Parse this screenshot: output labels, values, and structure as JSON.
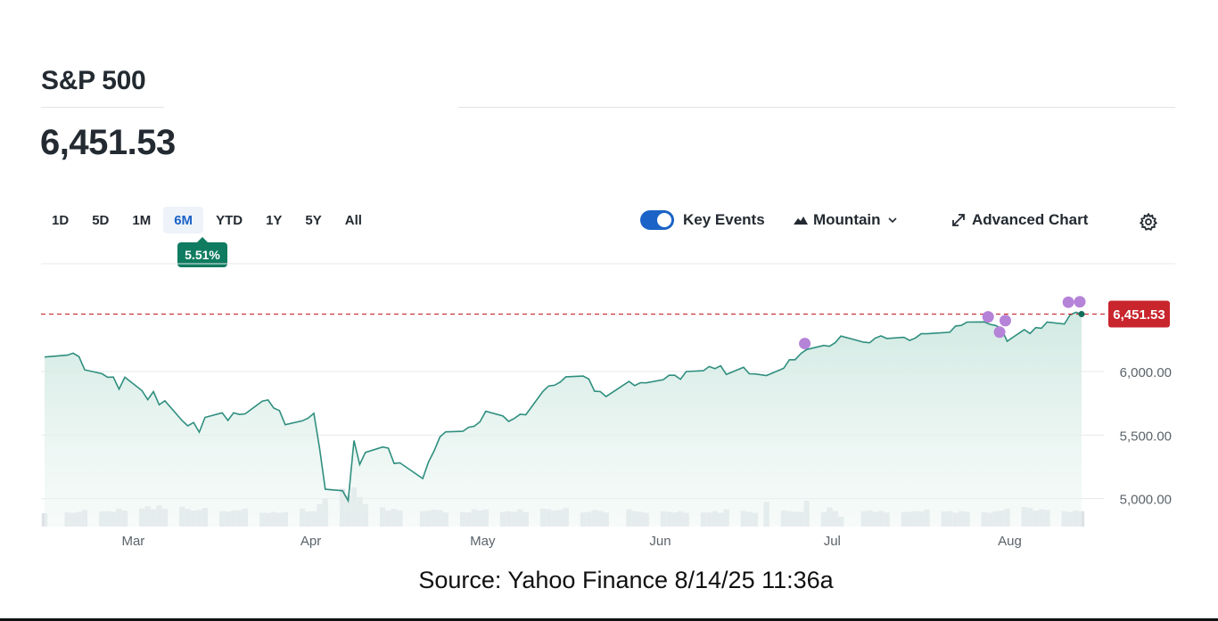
{
  "header": {
    "title": "S&P 500",
    "price": "6,451.53"
  },
  "ranges": [
    {
      "label": "1D",
      "active": false
    },
    {
      "label": "5D",
      "active": false
    },
    {
      "label": "1M",
      "active": false
    },
    {
      "label": "6M",
      "active": true
    },
    {
      "label": "YTD",
      "active": false
    },
    {
      "label": "1Y",
      "active": false
    },
    {
      "label": "5Y",
      "active": false
    },
    {
      "label": "All",
      "active": false
    }
  ],
  "change_badge": "5.51%",
  "controls": {
    "key_events_label": "Key Events",
    "key_events_on": true,
    "chart_type_label": "Mountain",
    "advanced_label": "Advanced Chart"
  },
  "icons": {
    "chart_type": "mountain-icon",
    "chart_type_menu": "chevron-down-icon",
    "advanced": "expand-arrow-icon",
    "settings": "gear-icon"
  },
  "colors": {
    "line": "#2f8f7f",
    "fill": "#d6ece6",
    "volume": "#dde2e6",
    "last_price": "#c9252d",
    "event_dot": "#b583d8",
    "active_range": "#1b63c6",
    "badge": "#0f7b60"
  },
  "source_note": "Source: Yahoo Finance 8/14/25 11:36a",
  "chart_data": {
    "type": "area",
    "series_name": "",
    "x_start": "2025-02-14",
    "x_end": "2025-08-14",
    "x_ticks": [
      {
        "label": "Mar",
        "date": "2025-03-01"
      },
      {
        "label": "Apr",
        "date": "2025-04-01"
      },
      {
        "label": "May",
        "date": "2025-05-01"
      },
      {
        "label": "Jun",
        "date": "2025-06-01"
      },
      {
        "label": "Jul",
        "date": "2025-07-01"
      },
      {
        "label": "Aug",
        "date": "2025-08-01"
      }
    ],
    "y_ticks": [
      {
        "label": "6,000.00",
        "value": 6000
      },
      {
        "label": "5,500.00",
        "value": 5500
      },
      {
        "label": "5,000.00",
        "value": 5000
      }
    ],
    "ylim": [
      4780,
      6960
    ],
    "last_price": {
      "label": "6,451.53",
      "value": 6451.53
    },
    "grid": "horizontal",
    "x": [
      "2025-02-14",
      "2025-02-18",
      "2025-02-19",
      "2025-02-20",
      "2025-02-21",
      "2025-02-24",
      "2025-02-25",
      "2025-02-26",
      "2025-02-27",
      "2025-02-28",
      "2025-03-03",
      "2025-03-04",
      "2025-03-05",
      "2025-03-06",
      "2025-03-07",
      "2025-03-10",
      "2025-03-11",
      "2025-03-12",
      "2025-03-13",
      "2025-03-14",
      "2025-03-17",
      "2025-03-18",
      "2025-03-19",
      "2025-03-20",
      "2025-03-21",
      "2025-03-24",
      "2025-03-25",
      "2025-03-26",
      "2025-03-27",
      "2025-03-28",
      "2025-03-31",
      "2025-04-01",
      "2025-04-02",
      "2025-04-03",
      "2025-04-04",
      "2025-04-07",
      "2025-04-08",
      "2025-04-09",
      "2025-04-10",
      "2025-04-11",
      "2025-04-14",
      "2025-04-15",
      "2025-04-16",
      "2025-04-17",
      "2025-04-21",
      "2025-04-22",
      "2025-04-23",
      "2025-04-24",
      "2025-04-25",
      "2025-04-28",
      "2025-04-29",
      "2025-04-30",
      "2025-05-01",
      "2025-05-02",
      "2025-05-05",
      "2025-05-06",
      "2025-05-07",
      "2025-05-08",
      "2025-05-09",
      "2025-05-12",
      "2025-05-13",
      "2025-05-14",
      "2025-05-15",
      "2025-05-16",
      "2025-05-19",
      "2025-05-20",
      "2025-05-21",
      "2025-05-22",
      "2025-05-23",
      "2025-05-27",
      "2025-05-28",
      "2025-05-29",
      "2025-05-30",
      "2025-06-02",
      "2025-06-03",
      "2025-06-04",
      "2025-06-05",
      "2025-06-06",
      "2025-06-09",
      "2025-06-10",
      "2025-06-11",
      "2025-06-12",
      "2025-06-13",
      "2025-06-16",
      "2025-06-17",
      "2025-06-18",
      "2025-06-20",
      "2025-06-23",
      "2025-06-24",
      "2025-06-25",
      "2025-06-26",
      "2025-06-27",
      "2025-06-30",
      "2025-07-01",
      "2025-07-02",
      "2025-07-03",
      "2025-07-07",
      "2025-07-08",
      "2025-07-09",
      "2025-07-10",
      "2025-07-11",
      "2025-07-14",
      "2025-07-15",
      "2025-07-16",
      "2025-07-17",
      "2025-07-18",
      "2025-07-21",
      "2025-07-22",
      "2025-07-23",
      "2025-07-24",
      "2025-07-25",
      "2025-07-28",
      "2025-07-29",
      "2025-07-30",
      "2025-07-31",
      "2025-08-01",
      "2025-08-04",
      "2025-08-05",
      "2025-08-06",
      "2025-08-07",
      "2025-08-08",
      "2025-08-11",
      "2025-08-12",
      "2025-08-13",
      "2025-08-14"
    ],
    "close": [
      6114,
      6129,
      6144,
      6117,
      6013,
      5983,
      5955,
      5956,
      5861,
      5955,
      5850,
      5778,
      5842,
      5738,
      5770,
      5614,
      5572,
      5599,
      5522,
      5639,
      5675,
      5615,
      5675,
      5662,
      5667,
      5767,
      5776,
      5712,
      5693,
      5581,
      5612,
      5633,
      5671,
      5397,
      5074,
      5062,
      4983,
      5457,
      5268,
      5363,
      5406,
      5397,
      5276,
      5282,
      5158,
      5287,
      5376,
      5485,
      5525,
      5529,
      5561,
      5569,
      5604,
      5687,
      5650,
      5607,
      5631,
      5663,
      5660,
      5844,
      5886,
      5892,
      5917,
      5958,
      5964,
      5940,
      5845,
      5842,
      5803,
      5922,
      5889,
      5912,
      5911,
      5936,
      5970,
      5970,
      5939,
      6000,
      6006,
      6039,
      6022,
      6045,
      5977,
      6033,
      5982,
      5981,
      5968,
      6025,
      6092,
      6092,
      6141,
      6173,
      6205,
      6198,
      6227,
      6279,
      6230,
      6226,
      6263,
      6280,
      6260,
      6269,
      6244,
      6264,
      6297,
      6297,
      6306,
      6309,
      6358,
      6363,
      6389,
      6390,
      6371,
      6362,
      6339,
      6238,
      6329,
      6299,
      6345,
      6340,
      6389,
      6373,
      6445,
      6466,
      6451.53
    ],
    "volume": [
      4.2,
      4.4,
      4.3,
      4.6,
      5.2,
      4.7,
      4.8,
      4.6,
      5.6,
      5.0,
      5.6,
      6.3,
      5.4,
      6.6,
      5.5,
      6.2,
      5.5,
      5.0,
      5.2,
      5.8,
      4.8,
      4.7,
      5.0,
      5.1,
      5.6,
      4.3,
      4.2,
      4.6,
      4.3,
      4.5,
      5.6,
      4.7,
      4.8,
      7.0,
      8.7,
      11.8,
      9.7,
      12.2,
      9.2,
      7.0,
      6.0,
      5.0,
      5.5,
      5.0,
      4.8,
      5.0,
      5.3,
      5.1,
      4.4,
      4.5,
      4.4,
      5.4,
      5.0,
      5.3,
      4.6,
      4.8,
      4.6,
      5.4,
      4.5,
      5.6,
      5.4,
      5.0,
      5.2,
      5.8,
      4.4,
      4.6,
      5.2,
      4.9,
      4.4,
      5.4,
      4.8,
      4.6,
      4.3,
      4.8,
      4.6,
      4.4,
      4.8,
      4.3,
      4.4,
      4.4,
      4.8,
      4.3,
      5.4,
      4.9,
      4.6,
      4.3,
      7.7,
      5.0,
      4.8,
      4.6,
      4.6,
      8.0,
      4.5,
      6.0,
      4.9,
      3.1,
      4.8,
      5.0,
      4.6,
      4.9,
      4.4,
      4.5,
      4.6,
      4.8,
      4.7,
      5.3,
      4.7,
      4.8,
      4.3,
      4.8,
      4.6,
      4.5,
      4.3,
      4.8,
      5.0,
      5.6,
      6.1,
      5.8,
      5.0,
      5.4,
      5.2,
      4.8,
      4.5,
      5.0,
      4.8
    ],
    "key_events": [
      {
        "date": "2025-06-27",
        "value": 6220
      },
      {
        "date": "2025-07-29",
        "value": 6430
      },
      {
        "date": "2025-07-31",
        "value": 6310
      },
      {
        "date": "2025-08-01",
        "value": 6400
      },
      {
        "date": "2025-08-12",
        "value": 6545
      },
      {
        "date": "2025-08-14",
        "value": 6548
      }
    ]
  }
}
